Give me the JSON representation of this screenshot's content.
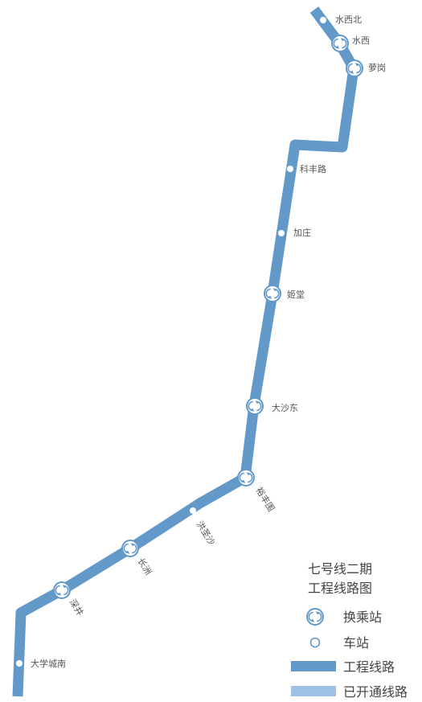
{
  "line_color": "#6399c9",
  "opened_line_color": "#9ec1e6",
  "stations": [
    {
      "id": "shuixibei",
      "name": "水西北",
      "type": "station"
    },
    {
      "id": "shuixi",
      "name": "水西",
      "type": "interchange"
    },
    {
      "id": "luogang",
      "name": "萝岗",
      "type": "interchange"
    },
    {
      "id": "kefenglu",
      "name": "科丰路",
      "type": "station"
    },
    {
      "id": "jiazhuang",
      "name": "加庄",
      "type": "station"
    },
    {
      "id": "jitang",
      "name": "姬堂",
      "type": "interchange"
    },
    {
      "id": "dashadong",
      "name": "大沙东",
      "type": "interchange"
    },
    {
      "id": "yufengwei",
      "name": "裕丰围",
      "type": "interchange"
    },
    {
      "id": "hongshengsha",
      "name": "洪圣沙",
      "type": "station"
    },
    {
      "id": "changzhou",
      "name": "长洲",
      "type": "interchange"
    },
    {
      "id": "shenjing",
      "name": "深井",
      "type": "interchange"
    },
    {
      "id": "daxuechengnan",
      "name": "大学城南",
      "type": "station"
    }
  ],
  "legend": {
    "title_line1": "七号线二期",
    "title_line2": "工程线路图",
    "interchange": "换乘站",
    "station": "车站",
    "construction_line": "工程线路",
    "opened_line": "已开通线路"
  }
}
